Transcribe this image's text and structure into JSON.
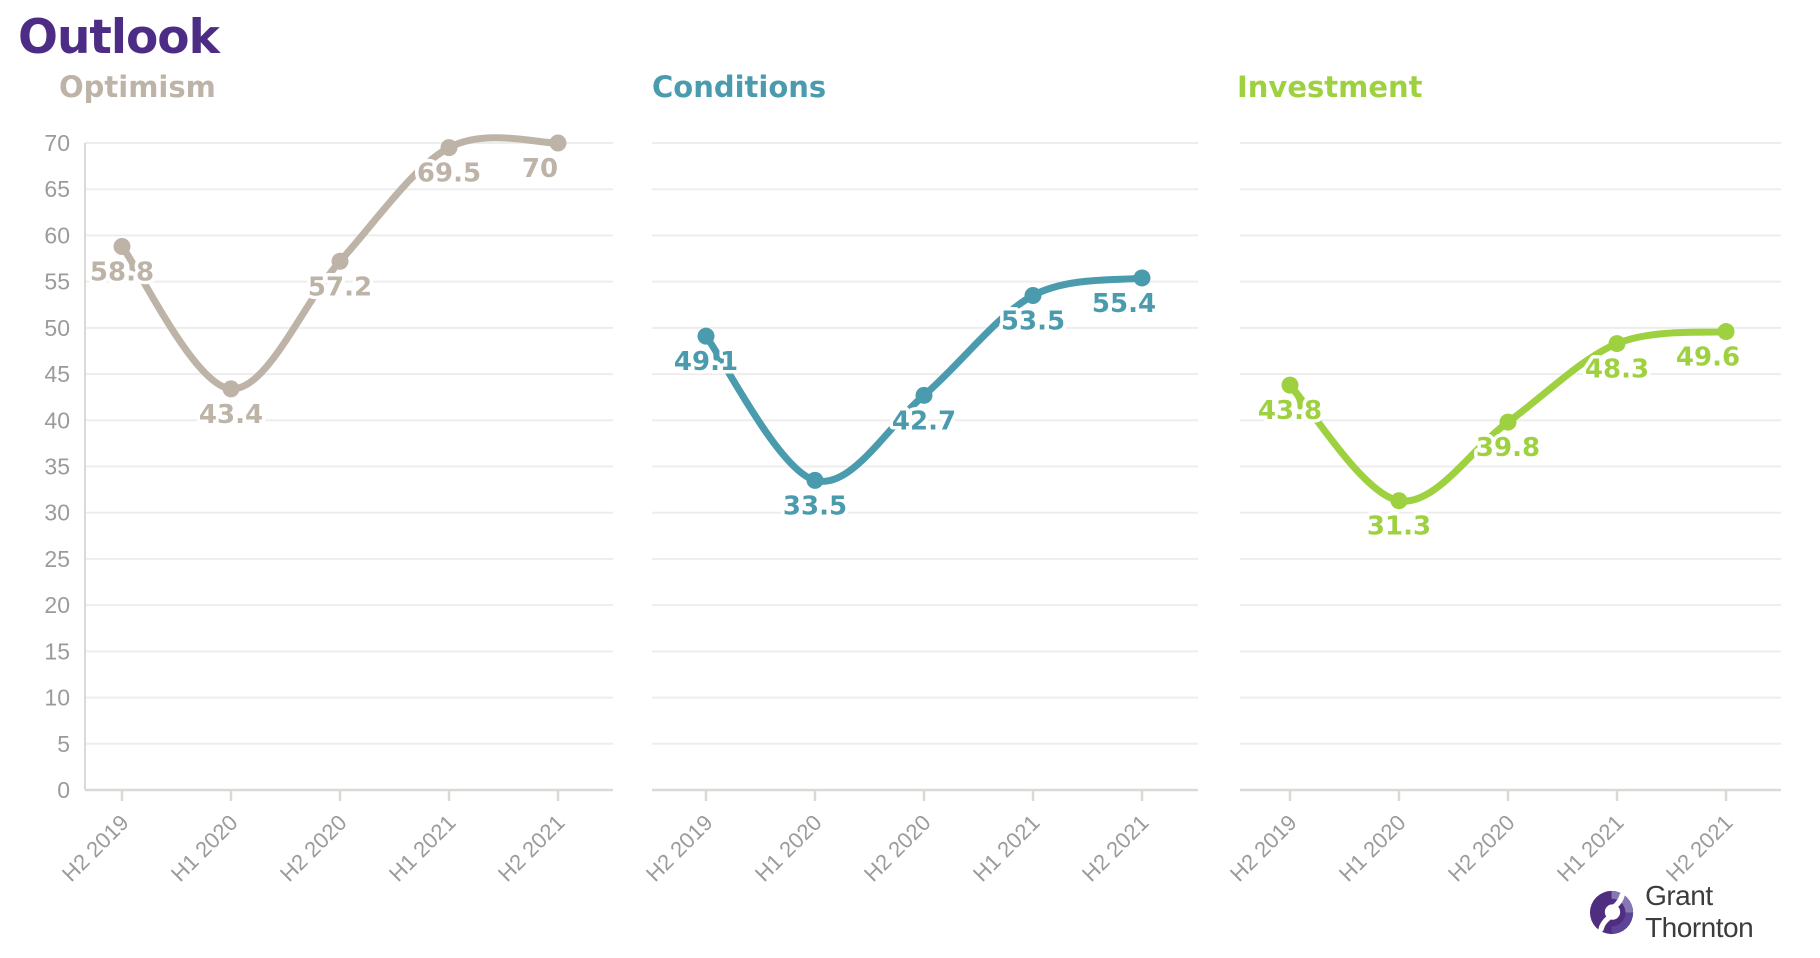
{
  "title": "Outlook",
  "brand": {
    "purple": "#4C2C85"
  },
  "logo": {
    "text": "Grant Thornton",
    "icon": "grant-thornton-pinwheel-icon"
  },
  "axis": {
    "y_min": 0,
    "y_max": 70,
    "y_step": 5
  },
  "categories": [
    "H2 2019",
    "H1 2020",
    "H2 2020",
    "H1 2021",
    "H2 2021"
  ],
  "chart_data": [
    {
      "type": "line",
      "title": "Optimism",
      "color": "#BDB3A7",
      "categories": [
        "H2 2019",
        "H1 2020",
        "H2 2020",
        "H1 2021",
        "H2 2021"
      ],
      "values": [
        58.8,
        43.4,
        57.2,
        69.5,
        70
      ],
      "ylim": [
        0,
        70
      ],
      "y_step": 5,
      "show_y_axis": true,
      "grid": true,
      "legend": "none"
    },
    {
      "type": "line",
      "title": "Conditions",
      "color": "#4A9BAD",
      "categories": [
        "H2 2019",
        "H1 2020",
        "H2 2020",
        "H1 2021",
        "H2 2021"
      ],
      "values": [
        49.1,
        33.5,
        42.7,
        53.5,
        55.4
      ],
      "ylim": [
        0,
        70
      ],
      "y_step": 5,
      "show_y_axis": false,
      "grid": true,
      "legend": "none"
    },
    {
      "type": "line",
      "title": "Investment",
      "color": "#9ED13F",
      "categories": [
        "H2 2019",
        "H1 2020",
        "H2 2020",
        "H1 2021",
        "H2 2021"
      ],
      "values": [
        43.8,
        31.3,
        39.8,
        48.3,
        49.6
      ],
      "ylim": [
        0,
        70
      ],
      "y_step": 5,
      "show_y_axis": false,
      "grid": true,
      "legend": "none"
    }
  ]
}
